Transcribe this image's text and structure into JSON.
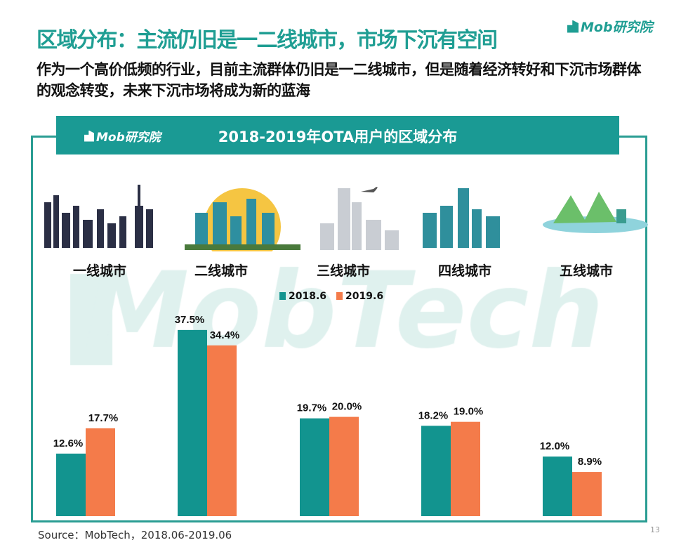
{
  "header": {
    "title": "区域分布：主流仍旧是一二线城市，市场下沉有空间",
    "logo": "Mob研究院",
    "subtitle": "作为一个高价低频的行业，目前主流群体仍旧是一二线城市，但是随着经济转好和下沉市场群体的观念转变，未来下沉市场将成为新的蓝海"
  },
  "panel": {
    "logo": "Mob研究院",
    "watermark": "MobTech"
  },
  "source": "Source：MobTech，2018.06-2019.06",
  "page_number": "13",
  "colors": {
    "teal": "#12948f",
    "orange": "#f47b4a",
    "accent": "#1f9e93"
  },
  "chart_data": {
    "type": "bar",
    "title": "2018-2019年OTA用户的区域分布",
    "categories": [
      "一线城市",
      "二线城市",
      "三线城市",
      "四线城市",
      "五线城市"
    ],
    "series": [
      {
        "name": "2018.6",
        "values": [
          12.6,
          37.5,
          19.7,
          18.2,
          12.0
        ],
        "labels": [
          "12.6%",
          "37.5%",
          "19.7%",
          "18.2%",
          "12.0%"
        ],
        "color": "#12948f"
      },
      {
        "name": "2019.6",
        "values": [
          17.7,
          34.4,
          20.0,
          19.0,
          8.9
        ],
        "labels": [
          "17.7%",
          "34.4%",
          "20.0%",
          "19.0%",
          "8.9%"
        ],
        "color": "#f47b4a"
      }
    ],
    "unit": "%",
    "legend": "top-center",
    "grid": false,
    "ylim": [
      0,
      40
    ]
  }
}
